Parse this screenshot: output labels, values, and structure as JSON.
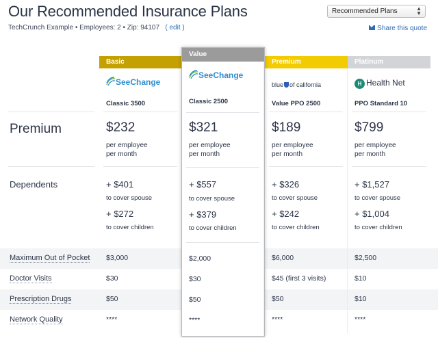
{
  "header": {
    "title": "Our Recommended Insurance Plans",
    "subline": "TechCrunch Example • Employees: 2 • Zip: 94107",
    "edit_label": "( edit )",
    "sort_select": "Recommended Plans",
    "share_label": "Share this quote"
  },
  "row_labels": {
    "premium": "Premium",
    "dependents": "Dependents",
    "max_oop": "Maximum Out of Pocket",
    "doctor": "Doctor Visits",
    "rx": "Prescription Drugs",
    "network": "Network Quality"
  },
  "plans": [
    {
      "tier": "Basic",
      "tier_color": "#c4a100",
      "carrier": "SeeChange",
      "name": "Classic 3500",
      "premium": "$232",
      "per_employee": "per employee",
      "per_month": "per month",
      "spouse": "+ $401",
      "spouse_label": "to cover spouse",
      "children": "+ $272",
      "children_label": "to cover children",
      "max_oop": "$3,000",
      "doctor": "$30",
      "rx": "$50",
      "network": "****"
    },
    {
      "tier": "Value",
      "tier_color": "#9b9b9b",
      "carrier": "SeeChange",
      "name": "Classic 2500",
      "premium": "$321",
      "per_employee": "per employee",
      "per_month": "per month",
      "spouse": "+ $557",
      "spouse_label": "to cover spouse",
      "children": "+ $379",
      "children_label": "to cover children",
      "max_oop": "$2,000",
      "doctor": "$30",
      "rx": "$50",
      "network": "****"
    },
    {
      "tier": "Premium",
      "tier_color": "#f2cb00",
      "carrier_left": "blue",
      "carrier_right": "of california",
      "name": "Value PPO 2500",
      "premium": "$189",
      "per_employee": "per employee",
      "per_month": "per month",
      "spouse": "+ $326",
      "spouse_label": "to cover spouse",
      "children": "+ $242",
      "children_label": "to cover children",
      "max_oop": "$6,000",
      "doctor": "$45 (first 3 visits)",
      "rx": "$50",
      "network": "****"
    },
    {
      "tier": "Platinum",
      "tier_color": "#d3d4d8",
      "carrier": "Health Net",
      "name": "PPO Standard 10",
      "premium": "$799",
      "per_employee": "per employee",
      "per_month": "per month",
      "spouse": "+ $1,527",
      "spouse_label": "to cover spouse",
      "children": "+ $1,004",
      "children_label": "to cover children",
      "max_oop": "$2,500",
      "doctor": "$10",
      "rx": "$10",
      "network": "****"
    }
  ],
  "icons": {
    "sort": "select-arrows-icon",
    "share": "envelope-icon"
  }
}
